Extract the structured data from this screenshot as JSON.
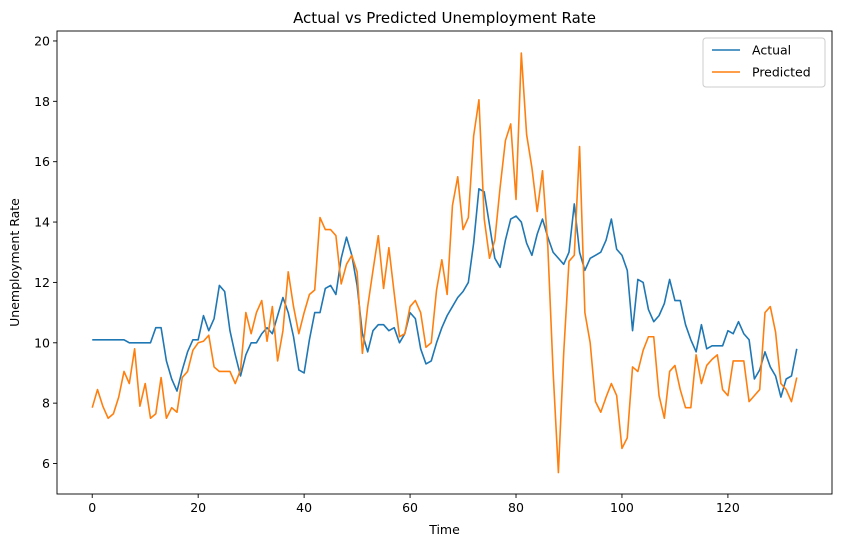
{
  "chart_data": {
    "type": "line",
    "title": "Actual vs Predicted Unemployment Rate",
    "xlabel": "Time",
    "ylabel": "Unemployment Rate",
    "xlim": [
      -6.65,
      139.65
    ],
    "ylim": [
      4.99,
      20.33
    ],
    "xticks": [
      0,
      20,
      40,
      60,
      80,
      100,
      120
    ],
    "yticks": [
      6,
      8,
      10,
      12,
      14,
      16,
      18,
      20
    ],
    "grid": false,
    "legend": "top-right",
    "series": [
      {
        "name": "Actual",
        "color": "#1f77b4",
        "values": [
          10.1,
          10.1,
          10.1,
          10.1,
          10.1,
          10.1,
          10.1,
          10.0,
          10.0,
          10.0,
          10.0,
          10.0,
          10.5,
          10.5,
          9.4,
          8.8,
          8.4,
          9.1,
          9.7,
          10.1,
          10.1,
          10.9,
          10.4,
          10.8,
          11.9,
          11.7,
          10.4,
          9.6,
          8.9,
          9.6,
          10.0,
          10.0,
          10.3,
          10.5,
          10.3,
          10.9,
          11.5,
          11.0,
          10.2,
          9.1,
          9.0,
          10.1,
          11.0,
          11.0,
          11.8,
          11.9,
          11.6,
          12.8,
          13.5,
          12.9,
          11.9,
          10.3,
          9.7,
          10.4,
          10.6,
          10.6,
          10.4,
          10.5,
          10.0,
          10.3,
          11.0,
          10.8,
          9.8,
          9.3,
          9.4,
          10.0,
          10.5,
          10.9,
          11.2,
          11.5,
          11.7,
          12.0,
          13.3,
          15.1,
          15.0,
          13.9,
          12.8,
          12.5,
          13.4,
          14.1,
          14.2,
          14.0,
          13.3,
          12.9,
          13.6,
          14.1,
          13.5,
          13.0,
          12.8,
          12.6,
          13.0,
          14.6,
          13.0,
          12.4,
          12.8,
          12.9,
          13.0,
          13.4,
          14.1,
          13.1,
          12.9,
          12.4,
          10.4,
          12.1,
          12.0,
          11.1,
          10.7,
          10.9,
          11.3,
          12.1,
          11.4,
          11.4,
          10.6,
          10.1,
          9.7,
          10.6,
          9.8,
          9.9,
          9.9,
          9.9,
          10.4,
          10.3,
          10.7,
          10.3,
          10.1,
          8.8,
          9.1,
          9.7,
          9.2,
          8.9,
          8.2,
          8.8,
          8.9,
          9.8
        ]
      },
      {
        "name": "Predicted",
        "color": "#ff7f0e",
        "values": [
          7.85,
          8.45,
          7.9,
          7.5,
          7.65,
          8.2,
          9.05,
          8.65,
          9.8,
          7.9,
          8.65,
          7.5,
          7.65,
          8.85,
          7.5,
          7.85,
          7.7,
          8.85,
          9.05,
          9.75,
          10.0,
          10.05,
          10.25,
          9.2,
          9.05,
          9.05,
          9.05,
          8.65,
          9.1,
          11.0,
          10.3,
          11.0,
          11.4,
          10.05,
          11.2,
          9.4,
          10.4,
          12.35,
          11.2,
          10.3,
          11.0,
          11.6,
          11.75,
          14.15,
          13.75,
          13.75,
          13.55,
          11.95,
          12.6,
          12.9,
          12.35,
          9.65,
          11.2,
          12.4,
          13.55,
          11.8,
          13.15,
          11.65,
          10.2,
          10.3,
          11.2,
          11.4,
          11.0,
          9.85,
          10.0,
          11.75,
          12.75,
          11.6,
          14.55,
          15.5,
          13.75,
          14.15,
          16.85,
          18.05,
          14.1,
          12.8,
          13.4,
          15.15,
          16.7,
          17.25,
          14.75,
          19.6,
          16.9,
          15.8,
          14.35,
          15.7,
          13.2,
          9.05,
          5.7,
          9.65,
          12.7,
          12.9,
          16.5,
          11.0,
          10.0,
          8.05,
          7.7,
          8.2,
          8.65,
          8.25,
          6.5,
          6.85,
          9.2,
          9.05,
          9.75,
          10.2,
          10.2,
          8.25,
          7.5,
          9.05,
          9.25,
          8.45,
          7.85,
          7.85,
          9.6,
          8.65,
          9.25,
          9.45,
          9.6,
          8.45,
          8.25,
          9.4,
          9.4,
          9.4,
          8.05,
          8.25,
          8.45,
          11.0,
          11.2,
          10.35,
          8.65,
          8.45,
          8.05,
          8.85
        ]
      }
    ]
  }
}
